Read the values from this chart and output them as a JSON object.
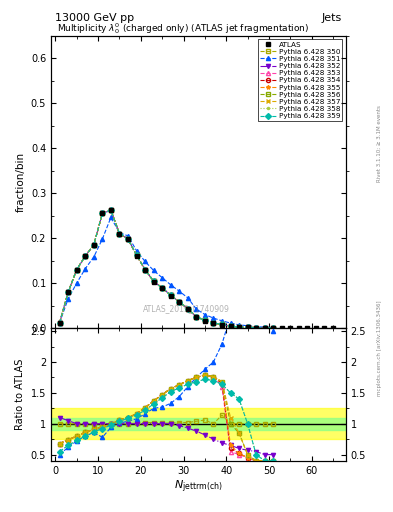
{
  "title_top": "13000 GeV pp",
  "title_right": "Jets",
  "plot_title": "Multiplicity $\\lambda_0^0$ (charged only) (ATLAS jet fragmentation)",
  "ylabel_main": "fraction/bin",
  "ylabel_ratio": "Ratio to ATLAS",
  "xlabel": "$N_{\\mathrm{jettrm(ch)}}$",
  "watermark": "ATLAS_2019_I1740909",
  "rivet_label": "Rivet 3.1.10; ≥ 3.1M events",
  "arxiv_label": "mcplots.cern.ch [arXiv:1306.3436]",
  "ylim_main": [
    0.0,
    0.65
  ],
  "ylim_ratio": [
    0.4,
    2.55
  ],
  "yticks_main": [
    0.0,
    0.1,
    0.2,
    0.3,
    0.4,
    0.5,
    0.6
  ],
  "yticks_ratio": [
    0.5,
    1.0,
    1.5,
    2.0,
    2.5
  ],
  "xlim": [
    -1,
    68
  ],
  "xticks": [
    0,
    10,
    20,
    30,
    40,
    50,
    60
  ],
  "atlas_x": [
    1,
    3,
    5,
    7,
    9,
    11,
    13,
    15,
    17,
    19,
    21,
    23,
    25,
    27,
    29,
    31,
    33,
    35,
    37,
    39,
    41,
    43,
    45,
    47,
    49,
    51,
    53,
    55,
    57,
    59,
    61,
    63,
    65
  ],
  "atlas_y": [
    0.012,
    0.08,
    0.13,
    0.16,
    0.185,
    0.255,
    0.262,
    0.21,
    0.198,
    0.16,
    0.128,
    0.102,
    0.088,
    0.072,
    0.057,
    0.042,
    0.024,
    0.016,
    0.011,
    0.007,
    0.004,
    0.002,
    0.0015,
    0.001,
    0.0006,
    0.0004,
    0.0002,
    0.00015,
    0.0001,
    8e-05,
    5e-05,
    3e-05,
    2e-05
  ],
  "series": [
    {
      "label": "Pythia 6.428 350",
      "color": "#aaaa00",
      "linestyle": "--",
      "marker": "s",
      "markerfill": "none",
      "main_y": [
        0.012,
        0.08,
        0.13,
        0.16,
        0.185,
        0.255,
        0.262,
        0.21,
        0.198,
        0.162,
        0.13,
        0.104,
        0.089,
        0.073,
        0.058,
        0.043,
        0.025,
        0.017,
        0.011,
        0.008,
        0.004,
        0.002,
        0.0015,
        0.001,
        0.0006,
        0.0004
      ],
      "ratio_y": [
        1.0,
        1.0,
        1.0,
        1.0,
        1.0,
        1.0,
        1.0,
        1.0,
        1.0,
        1.01,
        1.02,
        1.02,
        1.01,
        1.01,
        1.02,
        1.02,
        1.04,
        1.06,
        1.0,
        1.14,
        1.0,
        1.0,
        1.0,
        1.0,
        1.0,
        1.0
      ]
    },
    {
      "label": "Pythia 6.428 351",
      "color": "#0055ff",
      "linestyle": "--",
      "marker": "^",
      "markerfill": "full",
      "main_y": [
        0.012,
        0.065,
        0.1,
        0.132,
        0.158,
        0.198,
        0.246,
        0.212,
        0.205,
        0.172,
        0.148,
        0.128,
        0.112,
        0.096,
        0.082,
        0.067,
        0.042,
        0.03,
        0.022,
        0.016,
        0.011,
        0.007,
        0.005,
        0.003,
        0.002,
        0.001
      ],
      "ratio_y": [
        0.5,
        0.62,
        0.72,
        0.8,
        0.86,
        0.78,
        0.94,
        1.01,
        1.04,
        1.08,
        1.16,
        1.25,
        1.27,
        1.33,
        1.44,
        1.6,
        1.75,
        1.88,
        2.0,
        2.29,
        2.75,
        3.5,
        3.33,
        3.0,
        3.33,
        2.5
      ]
    },
    {
      "label": "Pythia 6.428 352",
      "color": "#7700cc",
      "linestyle": "-.",
      "marker": "v",
      "markerfill": "full",
      "main_y": [
        0.012,
        0.08,
        0.13,
        0.16,
        0.185,
        0.255,
        0.262,
        0.21,
        0.198,
        0.162,
        0.13,
        0.104,
        0.089,
        0.073,
        0.058,
        0.043,
        0.025,
        0.017,
        0.011,
        0.008,
        0.004,
        0.002,
        0.0015,
        0.001,
        0.0006,
        0.0004
      ],
      "ratio_y": [
        1.1,
        1.05,
        1.0,
        1.0,
        1.0,
        1.0,
        1.0,
        1.0,
        1.0,
        1.0,
        1.0,
        1.0,
        1.0,
        1.0,
        0.97,
        0.93,
        0.88,
        0.82,
        0.75,
        0.69,
        0.65,
        0.6,
        0.57,
        0.55,
        0.5,
        0.5
      ]
    },
    {
      "label": "Pythia 6.428 353",
      "color": "#ff44aa",
      "linestyle": "--",
      "marker": "^",
      "markerfill": "none",
      "main_y": [
        0.012,
        0.08,
        0.13,
        0.16,
        0.185,
        0.255,
        0.262,
        0.21,
        0.198,
        0.162,
        0.13,
        0.104,
        0.089,
        0.073,
        0.058,
        0.043,
        0.025,
        0.017,
        0.011,
        0.008,
        0.004,
        0.002,
        0.0015,
        0.001,
        0.0006,
        0.0004
      ],
      "ratio_y": [
        0.68,
        0.74,
        0.8,
        0.86,
        0.91,
        0.95,
        0.99,
        1.06,
        1.1,
        1.16,
        1.26,
        1.37,
        1.47,
        1.57,
        1.63,
        1.7,
        1.75,
        1.79,
        1.76,
        1.6,
        0.55,
        0.5,
        0.45,
        0.4,
        0.4,
        0.4
      ]
    },
    {
      "label": "Pythia 6.428 354",
      "color": "#cc0000",
      "linestyle": "--",
      "marker": "o",
      "markerfill": "none",
      "main_y": [
        0.012,
        0.08,
        0.13,
        0.16,
        0.185,
        0.255,
        0.262,
        0.21,
        0.198,
        0.162,
        0.13,
        0.104,
        0.089,
        0.073,
        0.058,
        0.043,
        0.025,
        0.017,
        0.011,
        0.008,
        0.004,
        0.002,
        0.0015,
        0.001,
        0.0006,
        0.0004
      ],
      "ratio_y": [
        0.68,
        0.74,
        0.8,
        0.86,
        0.91,
        0.95,
        0.99,
        1.06,
        1.1,
        1.16,
        1.26,
        1.37,
        1.47,
        1.57,
        1.63,
        1.7,
        1.75,
        1.79,
        1.76,
        1.65,
        0.6,
        0.52,
        0.45,
        0.4,
        0.4,
        0.4
      ]
    },
    {
      "label": "Pythia 6.428 355",
      "color": "#ff8800",
      "linestyle": "--",
      "marker": "*",
      "markerfill": "full",
      "main_y": [
        0.012,
        0.08,
        0.13,
        0.16,
        0.185,
        0.255,
        0.262,
        0.21,
        0.198,
        0.162,
        0.13,
        0.104,
        0.089,
        0.073,
        0.058,
        0.043,
        0.025,
        0.017,
        0.011,
        0.008,
        0.004,
        0.002,
        0.0015,
        0.001,
        0.0006,
        0.0004
      ],
      "ratio_y": [
        0.68,
        0.74,
        0.8,
        0.86,
        0.91,
        0.95,
        0.99,
        1.06,
        1.1,
        1.16,
        1.26,
        1.37,
        1.47,
        1.57,
        1.63,
        1.7,
        1.75,
        1.79,
        1.76,
        1.68,
        0.65,
        0.52,
        0.45,
        0.4,
        0.4,
        0.4
      ]
    },
    {
      "label": "Pythia 6.428 356",
      "color": "#88aa00",
      "linestyle": "--",
      "marker": "s",
      "markerfill": "none",
      "main_y": [
        0.012,
        0.08,
        0.13,
        0.16,
        0.185,
        0.255,
        0.262,
        0.21,
        0.198,
        0.162,
        0.13,
        0.104,
        0.089,
        0.073,
        0.058,
        0.043,
        0.025,
        0.017,
        0.011,
        0.008,
        0.004,
        0.002,
        0.0015,
        0.001,
        0.0006,
        0.0004
      ],
      "ratio_y": [
        0.68,
        0.74,
        0.8,
        0.86,
        0.91,
        0.95,
        0.99,
        1.06,
        1.1,
        1.16,
        1.26,
        1.37,
        1.47,
        1.57,
        1.63,
        1.7,
        1.75,
        1.79,
        1.76,
        1.68,
        1.0,
        0.85,
        0.5,
        0.4,
        0.4,
        0.4
      ]
    },
    {
      "label": "Pythia 6.428 357",
      "color": "#ddaa00",
      "linestyle": "--",
      "marker": "x",
      "markerfill": "full",
      "main_y": [
        0.012,
        0.08,
        0.13,
        0.16,
        0.185,
        0.255,
        0.262,
        0.21,
        0.198,
        0.162,
        0.13,
        0.104,
        0.089,
        0.073,
        0.058,
        0.043,
        0.025,
        0.017,
        0.011,
        0.008,
        0.004,
        0.002,
        0.0015,
        0.001,
        0.0006,
        0.0004
      ],
      "ratio_y": [
        0.68,
        0.74,
        0.8,
        0.86,
        0.91,
        0.95,
        0.99,
        1.06,
        1.1,
        1.16,
        1.26,
        1.37,
        1.47,
        1.57,
        1.63,
        1.7,
        1.75,
        1.79,
        1.76,
        1.68,
        1.1,
        0.85,
        0.5,
        0.4,
        0.4,
        0.4
      ]
    },
    {
      "label": "Pythia 6.428 358",
      "color": "#aacc44",
      "linestyle": ":",
      "marker": ".",
      "markerfill": "full",
      "main_y": [
        0.012,
        0.08,
        0.13,
        0.16,
        0.185,
        0.255,
        0.262,
        0.21,
        0.198,
        0.162,
        0.13,
        0.104,
        0.089,
        0.073,
        0.058,
        0.043,
        0.025,
        0.017,
        0.011,
        0.008,
        0.004,
        0.002,
        0.0015,
        0.001,
        0.0006,
        0.0004
      ],
      "ratio_y": [
        0.55,
        0.65,
        0.73,
        0.8,
        0.87,
        0.92,
        0.98,
        1.04,
        1.09,
        1.14,
        1.22,
        1.32,
        1.42,
        1.52,
        1.58,
        1.64,
        1.68,
        1.72,
        1.7,
        1.64,
        1.5,
        1.4,
        1.0,
        0.5,
        0.4,
        0.4
      ]
    },
    {
      "label": "Pythia 6.428 359",
      "color": "#00bbaa",
      "linestyle": "--",
      "marker": "D",
      "markerfill": "full",
      "main_y": [
        0.012,
        0.08,
        0.13,
        0.16,
        0.185,
        0.255,
        0.262,
        0.21,
        0.198,
        0.162,
        0.13,
        0.104,
        0.089,
        0.073,
        0.058,
        0.043,
        0.025,
        0.017,
        0.011,
        0.008,
        0.004,
        0.002,
        0.0015,
        0.001,
        0.0006,
        0.0004
      ],
      "ratio_y": [
        0.55,
        0.65,
        0.73,
        0.8,
        0.87,
        0.92,
        0.98,
        1.04,
        1.09,
        1.14,
        1.22,
        1.32,
        1.42,
        1.52,
        1.58,
        1.64,
        1.68,
        1.72,
        1.7,
        1.64,
        1.5,
        1.4,
        1.0,
        0.5,
        0.4,
        0.4
      ]
    }
  ],
  "bg_yellow_y1": 0.75,
  "bg_yellow_y2": 1.25,
  "bg_green_y1": 0.9,
  "bg_green_y2": 1.1
}
